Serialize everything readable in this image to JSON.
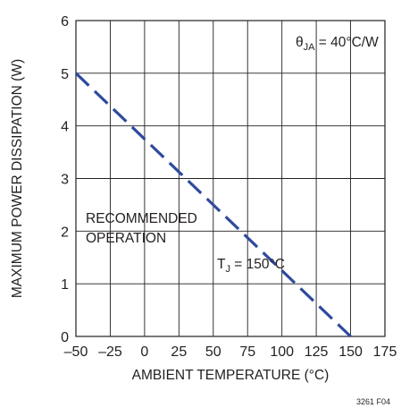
{
  "chart_data": {
    "type": "line",
    "xlabel": "AMBIENT TEMPERATURE (°C)",
    "ylabel": "MAXIMUM POWER DISSIPATION (W)",
    "xlim": [
      -50,
      175
    ],
    "ylim": [
      0,
      6
    ],
    "x_ticks": [
      "–50",
      "–25",
      "0",
      "25",
      "50",
      "75",
      "100",
      "125",
      "150",
      "175"
    ],
    "y_ticks": [
      "0",
      "1",
      "2",
      "3",
      "4",
      "5",
      "6"
    ],
    "grid": true,
    "series": [
      {
        "x": [
          -50,
          150
        ],
        "y": [
          5,
          0
        ],
        "style": "dashed",
        "color": "#2e4a9e"
      }
    ],
    "annotations": {
      "theta_main": "θ",
      "theta_sub": "JA",
      "theta_value": " = 40°C/W",
      "region_line1": "RECOMMENDED",
      "region_line2": "OPERATION",
      "tj_main": "T",
      "tj_sub": "J",
      "tj_value": " = 150°C"
    },
    "figure_id": "3261 F04"
  }
}
